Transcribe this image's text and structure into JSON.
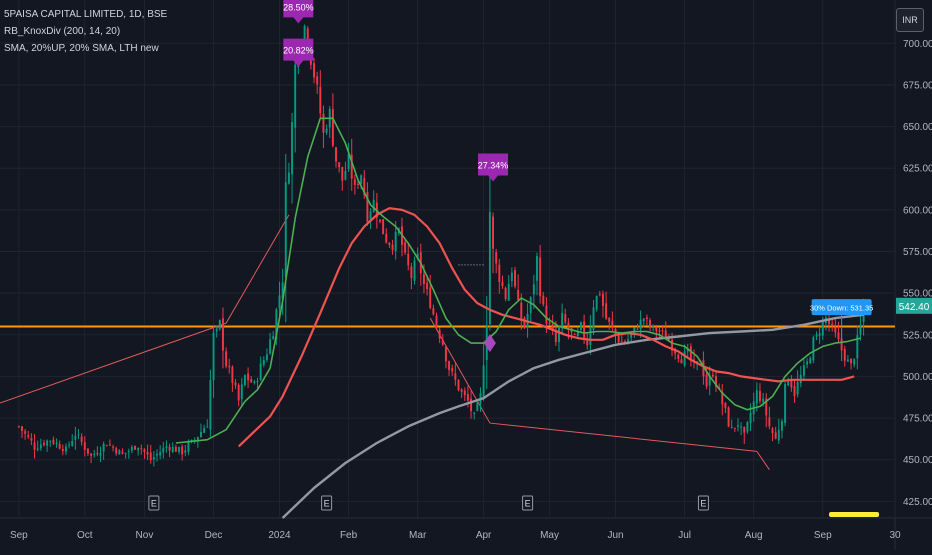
{
  "header": {
    "symbol": "5PAISA CAPITAL LIMITED, 1D, BSE",
    "indicator1": "RB_KnoxDiv (200, 14, 20)",
    "indicator2": "SMA, 20%UP, 20% SMA, LTH new",
    "currency": "INR"
  },
  "chart_data": {
    "type": "candlestick",
    "x_ticks": [
      {
        "label": "Sep",
        "x": 0
      },
      {
        "label": "Oct",
        "x": 21
      },
      {
        "label": "Nov",
        "x": 40
      },
      {
        "label": "Dec",
        "x": 62
      },
      {
        "label": "2024",
        "x": 83
      },
      {
        "label": "Feb",
        "x": 105
      },
      {
        "label": "Mar",
        "x": 127
      },
      {
        "label": "Apr",
        "x": 148
      },
      {
        "label": "May",
        "x": 169
      },
      {
        "label": "Jun",
        "x": 190
      },
      {
        "label": "Jul",
        "x": 212
      },
      {
        "label": "Aug",
        "x": 234
      },
      {
        "label": "Sep",
        "x": 256
      },
      {
        "label": "30",
        "x": 279
      }
    ],
    "y_ticks": [
      425,
      450,
      475,
      500,
      525,
      550,
      575,
      600,
      625,
      650,
      675,
      700
    ],
    "ylim": [
      415,
      726
    ],
    "xlim": [
      -6,
      279
    ],
    "last_price": "542.40",
    "last_price_value": 542.4,
    "horizontal_level": 530,
    "ohlc_anchors": [
      [
        0,
        470
      ],
      [
        5,
        458
      ],
      [
        10,
        462
      ],
      [
        15,
        456
      ],
      [
        18,
        466
      ],
      [
        23,
        452
      ],
      [
        28,
        460
      ],
      [
        33,
        453
      ],
      [
        38,
        459
      ],
      [
        42,
        450
      ],
      [
        47,
        458
      ],
      [
        52,
        455
      ],
      [
        56,
        462
      ],
      [
        60,
        472
      ],
      [
        62,
        522
      ],
      [
        64,
        532
      ],
      [
        66,
        508
      ],
      [
        68,
        498
      ],
      [
        70,
        485
      ],
      [
        72,
        500
      ],
      [
        75,
        495
      ],
      [
        77,
        505
      ],
      [
        79,
        515
      ],
      [
        81,
        528
      ],
      [
        84,
        560
      ],
      [
        85,
        605
      ],
      [
        87,
        650
      ],
      [
        88,
        685
      ],
      [
        89,
        705
      ],
      [
        90,
        698
      ],
      [
        91,
        710
      ],
      [
        93,
        690
      ],
      [
        95,
        672
      ],
      [
        97,
        645
      ],
      [
        99,
        658
      ],
      [
        101,
        630
      ],
      [
        103,
        618
      ],
      [
        105,
        630
      ],
      [
        107,
        612
      ],
      [
        109,
        622
      ],
      [
        111,
        598
      ],
      [
        113,
        605
      ],
      [
        115,
        592
      ],
      [
        117,
        582
      ],
      [
        119,
        578
      ],
      [
        121,
        588
      ],
      [
        123,
        570
      ],
      [
        125,
        560
      ],
      [
        127,
        572
      ],
      [
        129,
        555
      ],
      [
        131,
        545
      ],
      [
        133,
        530
      ],
      [
        135,
        520
      ],
      [
        137,
        505
      ],
      [
        139,
        497
      ],
      [
        141,
        490
      ],
      [
        143,
        485
      ],
      [
        145,
        475
      ],
      [
        147,
        488
      ],
      [
        149,
        540
      ],
      [
        150,
        600
      ],
      [
        151,
        572
      ],
      [
        153,
        560
      ],
      [
        155,
        548
      ],
      [
        157,
        565
      ],
      [
        159,
        540
      ],
      [
        161,
        530
      ],
      [
        163,
        545
      ],
      [
        165,
        570
      ],
      [
        167,
        540
      ],
      [
        169,
        530
      ],
      [
        171,
        520
      ],
      [
        173,
        535
      ],
      [
        175,
        528
      ],
      [
        177,
        522
      ],
      [
        179,
        530
      ],
      [
        181,
        520
      ],
      [
        183,
        545
      ],
      [
        185,
        550
      ],
      [
        187,
        535
      ],
      [
        189,
        528
      ],
      [
        191,
        522
      ],
      [
        193,
        520
      ],
      [
        195,
        525
      ],
      [
        197,
        530
      ],
      [
        199,
        535
      ],
      [
        201,
        530
      ],
      [
        203,
        528
      ],
      [
        205,
        526
      ],
      [
        207,
        522
      ],
      [
        209,
        515
      ],
      [
        211,
        510
      ],
      [
        213,
        515
      ],
      [
        215,
        505
      ],
      [
        217,
        510
      ],
      [
        219,
        495
      ],
      [
        221,
        502
      ],
      [
        223,
        490
      ],
      [
        225,
        478
      ],
      [
        227,
        468
      ],
      [
        229,
        472
      ],
      [
        231,
        462
      ],
      [
        233,
        478
      ],
      [
        235,
        490
      ],
      [
        237,
        485
      ],
      [
        239,
        470
      ],
      [
        241,
        462
      ],
      [
        243,
        478
      ],
      [
        245,
        500
      ],
      [
        247,
        490
      ],
      [
        249,
        500
      ],
      [
        251,
        508
      ],
      [
        253,
        520
      ],
      [
        255,
        528
      ],
      [
        257,
        535
      ],
      [
        259,
        528
      ],
      [
        261,
        520
      ],
      [
        263,
        512
      ],
      [
        265,
        506
      ],
      [
        267,
        520
      ],
      [
        269,
        540
      ]
    ],
    "sma_slow": [
      [
        84,
        415
      ],
      [
        94,
        433
      ],
      [
        104,
        448
      ],
      [
        114,
        460
      ],
      [
        124,
        470
      ],
      [
        134,
        478
      ],
      [
        140,
        482
      ],
      [
        148,
        487
      ],
      [
        156,
        497
      ],
      [
        164,
        505
      ],
      [
        172,
        510
      ],
      [
        180,
        514
      ],
      [
        190,
        519
      ],
      [
        200,
        522
      ],
      [
        210,
        524
      ],
      [
        220,
        526
      ],
      [
        230,
        527
      ],
      [
        240,
        528
      ],
      [
        250,
        531
      ],
      [
        260,
        535
      ],
      [
        269,
        537
      ]
    ],
    "sma_fast": [
      [
        50,
        460
      ],
      [
        60,
        462
      ],
      [
        66,
        468
      ],
      [
        72,
        485
      ],
      [
        76,
        492
      ],
      [
        80,
        505
      ],
      [
        84,
        545
      ],
      [
        88,
        595
      ],
      [
        92,
        632
      ],
      [
        96,
        655
      ],
      [
        100,
        655
      ],
      [
        104,
        640
      ],
      [
        108,
        618
      ],
      [
        112,
        603
      ],
      [
        116,
        596
      ],
      [
        120,
        590
      ],
      [
        124,
        580
      ],
      [
        128,
        568
      ],
      [
        132,
        552
      ],
      [
        136,
        535
      ],
      [
        140,
        525
      ],
      [
        144,
        520
      ],
      [
        148,
        520
      ],
      [
        152,
        527
      ],
      [
        156,
        540
      ],
      [
        160,
        547
      ],
      [
        164,
        543
      ],
      [
        168,
        535
      ],
      [
        172,
        530
      ],
      [
        176,
        528
      ],
      [
        180,
        526
      ],
      [
        184,
        527
      ],
      [
        188,
        527
      ],
      [
        192,
        526
      ],
      [
        196,
        527
      ],
      [
        200,
        527
      ],
      [
        204,
        525
      ],
      [
        208,
        520
      ],
      [
        212,
        518
      ],
      [
        216,
        512
      ],
      [
        220,
        500
      ],
      [
        224,
        490
      ],
      [
        228,
        483
      ],
      [
        232,
        480
      ],
      [
        236,
        482
      ],
      [
        240,
        488
      ],
      [
        244,
        500
      ],
      [
        248,
        508
      ],
      [
        252,
        514
      ],
      [
        256,
        518
      ],
      [
        260,
        520
      ],
      [
        264,
        521
      ],
      [
        268,
        523
      ]
    ],
    "sma_mid": [
      [
        70,
        458
      ],
      [
        80,
        476
      ],
      [
        84,
        488
      ],
      [
        90,
        512
      ],
      [
        96,
        538
      ],
      [
        102,
        565
      ],
      [
        106,
        580
      ],
      [
        110,
        590
      ],
      [
        114,
        597
      ],
      [
        118,
        601
      ],
      [
        122,
        600
      ],
      [
        126,
        597
      ],
      [
        130,
        590
      ],
      [
        134,
        580
      ],
      [
        138,
        565
      ],
      [
        142,
        552
      ],
      [
        146,
        544
      ],
      [
        150,
        540
      ],
      [
        154,
        537
      ],
      [
        158,
        535
      ],
      [
        162,
        533
      ],
      [
        166,
        531
      ],
      [
        170,
        528
      ],
      [
        174,
        525
      ],
      [
        178,
        523
      ],
      [
        182,
        522
      ],
      [
        186,
        522
      ],
      [
        190,
        525
      ],
      [
        194,
        526
      ],
      [
        198,
        525
      ],
      [
        202,
        522
      ],
      [
        206,
        518
      ],
      [
        210,
        515
      ],
      [
        214,
        510
      ],
      [
        218,
        506
      ],
      [
        222,
        503
      ],
      [
        226,
        502
      ],
      [
        230,
        500
      ],
      [
        234,
        499
      ],
      [
        238,
        498
      ],
      [
        242,
        497
      ],
      [
        246,
        498
      ],
      [
        250,
        498
      ],
      [
        254,
        498
      ],
      [
        258,
        498
      ],
      [
        262,
        498
      ],
      [
        266,
        500
      ]
    ],
    "divergence_lines": [
      {
        "from": [
          -6,
          484
        ],
        "to": [
          66,
          532
        ]
      },
      {
        "from": [
          66,
          532
        ],
        "to": [
          86,
          597
        ]
      },
      {
        "from": [
          131,
          535
        ],
        "to": [
          150,
          472
        ]
      },
      {
        "from": [
          150,
          472
        ],
        "to": [
          235,
          455
        ]
      },
      {
        "from": [
          235,
          455
        ],
        "to": [
          239,
          444
        ]
      }
    ],
    "dotted_line": {
      "from": [
        140,
        567
      ],
      "to": [
        148,
        567
      ]
    },
    "annotations": [
      {
        "label": "28.50%",
        "x": 89,
        "y": 712,
        "anchor": "bottom"
      },
      {
        "label": "20.82%",
        "x": 89,
        "y": 686,
        "anchor": "bottom"
      },
      {
        "label": "27.34%",
        "x": 151,
        "y": 617,
        "anchor": "bottom"
      }
    ],
    "earnings_markers": [
      {
        "label": "E",
        "x": 43
      },
      {
        "label": "E",
        "x": 98
      },
      {
        "label": "E",
        "x": 162
      },
      {
        "label": "E",
        "x": 218
      }
    ],
    "diamond_marker": {
      "x": 150,
      "y": 520
    },
    "tag": {
      "label": "30% Down: 531.35",
      "x": 262,
      "y": 541
    }
  },
  "colors": {
    "background": "#131722",
    "grid": "#1f2430",
    "up": "#089981",
    "down": "#f23645",
    "sma_slow": "#9598a1",
    "sma_fast": "#4caf50",
    "sma_mid": "#ef5350",
    "level": "#ff9800",
    "annotation": "#9c27b0",
    "price_tag": "#2196f3",
    "axis_text": "#b2b5be"
  }
}
